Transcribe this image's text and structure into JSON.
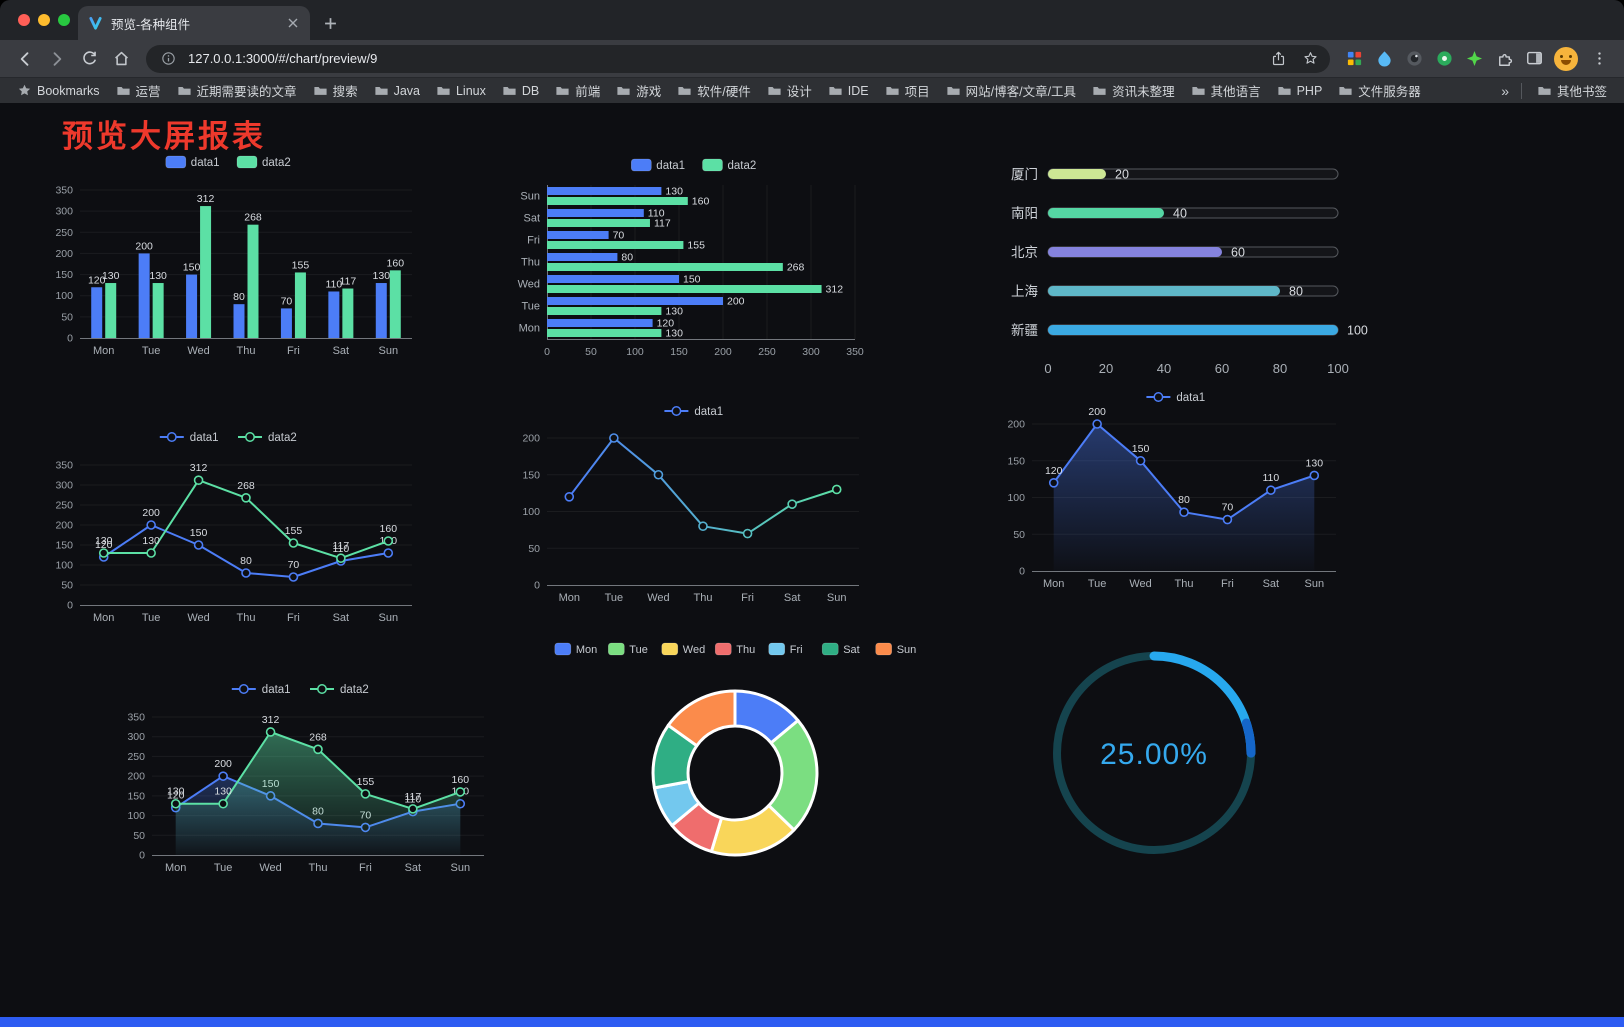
{
  "browser": {
    "tab": {
      "title": "预览-各种组件"
    },
    "url": "127.0.0.1:3000/#/chart/preview/9",
    "bookmarks_bar": {
      "root_label": "Bookmarks",
      "folders": [
        "运营",
        "近期需要读的文章",
        "搜索",
        "Java",
        "Linux",
        "DB",
        "前端",
        "游戏",
        "软件/硬件",
        "设计",
        "IDE",
        "项目",
        "网站/博客/文章/工具",
        "资讯未整理",
        "其他语言",
        "PHP",
        "文件服务器"
      ],
      "overflow": "»",
      "other": "其他书签"
    }
  },
  "page": {
    "title": "预览大屏报表"
  },
  "chart_data": [
    {
      "id": "grouped-bar",
      "type": "bar",
      "legend_position": "top",
      "categories": [
        "Mon",
        "Tue",
        "Wed",
        "Thu",
        "Fri",
        "Sat",
        "Sun"
      ],
      "series": [
        {
          "name": "data1",
          "color": "#4C7DF7",
          "values": [
            120,
            200,
            150,
            80,
            70,
            110,
            130
          ]
        },
        {
          "name": "data2",
          "color": "#5CE0A5",
          "values": [
            130,
            130,
            312,
            268,
            155,
            117,
            160
          ]
        }
      ],
      "ylim": [
        0,
        350
      ],
      "yticks": [
        0,
        50,
        100,
        150,
        200,
        250,
        300,
        350
      ]
    },
    {
      "id": "grouped-bar-horizontal",
      "type": "bar",
      "orientation": "horizontal",
      "legend_position": "top",
      "categories": [
        "Mon",
        "Tue",
        "Wed",
        "Thu",
        "Fri",
        "Sat",
        "Sun"
      ],
      "series": [
        {
          "name": "data1",
          "color": "#4C7DF7",
          "values": [
            120,
            200,
            150,
            80,
            70,
            110,
            130
          ]
        },
        {
          "name": "data2",
          "color": "#5CE0A5",
          "values": [
            130,
            130,
            312,
            268,
            155,
            117,
            160
          ]
        }
      ],
      "xlim": [
        0,
        350
      ],
      "xticks": [
        0,
        50,
        100,
        150,
        200,
        250,
        300,
        350
      ]
    },
    {
      "id": "city-progress",
      "type": "bar",
      "orientation": "progress",
      "max": 100,
      "xticks": [
        0,
        20,
        40,
        60,
        80,
        100
      ],
      "rows": [
        {
          "label": "厦门",
          "value": 20,
          "color": "#CDE795"
        },
        {
          "label": "南阳",
          "value": 40,
          "color": "#55D6A4"
        },
        {
          "label": "北京",
          "value": 60,
          "color": "#8583DE"
        },
        {
          "label": "上海",
          "value": 80,
          "color": "#5EB7C8"
        },
        {
          "label": "新疆",
          "value": 100,
          "color": "#3BA9E2"
        }
      ]
    },
    {
      "id": "dual-line",
      "type": "line",
      "categories": [
        "Mon",
        "Tue",
        "Wed",
        "Thu",
        "Fri",
        "Sat",
        "Sun"
      ],
      "series": [
        {
          "name": "data1",
          "color": "#4C7DF7",
          "values": [
            120,
            200,
            150,
            80,
            70,
            110,
            130
          ],
          "show_labels": true
        },
        {
          "name": "data2",
          "color": "#5CE0A5",
          "values": [
            130,
            130,
            312,
            268,
            155,
            117,
            160
          ],
          "show_labels": true
        }
      ],
      "ylim": [
        0,
        350
      ],
      "yticks": [
        0,
        50,
        100,
        150,
        200,
        250,
        300,
        350
      ]
    },
    {
      "id": "gradient-line",
      "type": "line",
      "categories": [
        "Mon",
        "Tue",
        "Wed",
        "Thu",
        "Fri",
        "Sat",
        "Sun"
      ],
      "series": [
        {
          "name": "data1",
          "gradient": [
            "#4C7DF7",
            "#5CE0A5"
          ],
          "values": [
            120,
            200,
            150,
            80,
            70,
            110,
            130
          ]
        }
      ],
      "ylim": [
        0,
        200
      ],
      "yticks": [
        0,
        50,
        100,
        150,
        200
      ]
    },
    {
      "id": "area-line",
      "type": "area",
      "categories": [
        "Mon",
        "Tue",
        "Wed",
        "Thu",
        "Fri",
        "Sat",
        "Sun"
      ],
      "series": [
        {
          "name": "data1",
          "color": "#4C7DF7",
          "values": [
            120,
            200,
            150,
            80,
            70,
            110,
            130
          ],
          "show_labels": true,
          "area": true,
          "area_opacity": 0.4
        }
      ],
      "ylim": [
        0,
        200
      ],
      "yticks": [
        0,
        50,
        100,
        150,
        200
      ]
    },
    {
      "id": "dual-line-area",
      "type": "area",
      "categories": [
        "Mon",
        "Tue",
        "Wed",
        "Thu",
        "Fri",
        "Sat",
        "Sun"
      ],
      "series": [
        {
          "name": "data1",
          "color": "#4C7DF7",
          "values": [
            120,
            200,
            150,
            80,
            70,
            110,
            130
          ],
          "show_labels": true,
          "area": true,
          "area_opacity": 0.3
        },
        {
          "name": "data2",
          "color": "#5CE0A5",
          "values": [
            130,
            130,
            312,
            268,
            155,
            117,
            160
          ],
          "show_labels": true,
          "area": true,
          "area_opacity": 0.45
        }
      ],
      "ylim": [
        0,
        350
      ],
      "yticks": [
        0,
        50,
        100,
        150,
        200,
        250,
        300,
        350
      ]
    },
    {
      "id": "weekday-donut",
      "type": "pie",
      "labels": [
        "Mon",
        "Tue",
        "Wed",
        "Thu",
        "Fri",
        "Sat",
        "Sun"
      ],
      "values": [
        120,
        200,
        150,
        80,
        70,
        110,
        130
      ],
      "colors": [
        "#4C7DF7",
        "#7BDE81",
        "#F9D65A",
        "#EF6D6D",
        "#73C8EE",
        "#2FAE84",
        "#FB8B4B"
      ]
    },
    {
      "id": "percent-gauge",
      "type": "gauge",
      "value": 25,
      "display": "25.00%",
      "color": "#27A8EE",
      "tail_color": "#1566C9",
      "track_color": "#15444E",
      "text_color": "#35A9EE"
    }
  ]
}
